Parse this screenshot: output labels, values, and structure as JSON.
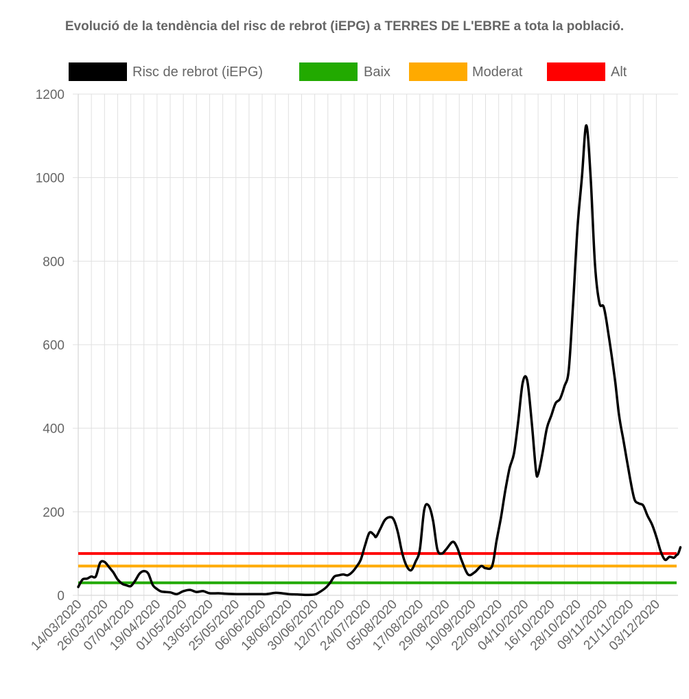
{
  "chart_data": {
    "type": "line",
    "title": "Evolució de la tendència del risc de rebrot (iEPG) a TERRES DE L'EBRE a tota la població.",
    "start_date": "2020-03-14",
    "x_tick_labels": [
      "14/03/2020",
      "26/03/2020",
      "07/04/2020",
      "19/04/2020",
      "01/05/2020",
      "13/05/2020",
      "25/05/2020",
      "06/06/2020",
      "18/06/2020",
      "30/06/2020",
      "12/07/2020",
      "24/07/2020",
      "05/08/2020",
      "17/08/2020",
      "29/08/2020",
      "10/09/2020",
      "22/09/2020",
      "04/10/2020",
      "16/10/2020",
      "28/10/2020",
      "09/11/2020",
      "21/11/2020",
      "03/12/2020"
    ],
    "y_tick_labels": [
      "0",
      "200",
      "400",
      "600",
      "800",
      "1000",
      "1200"
    ],
    "ylim": [
      0,
      1200
    ],
    "grid": true,
    "legend_position": "top",
    "series": [
      {
        "name": "Risc de rebrot (iEPG)",
        "color": "#000000",
        "points": [
          [
            "2020-03-14",
            20
          ],
          [
            "2020-03-16",
            38
          ],
          [
            "2020-03-18",
            40
          ],
          [
            "2020-03-20",
            45
          ],
          [
            "2020-03-22",
            45
          ],
          [
            "2020-03-24",
            78
          ],
          [
            "2020-03-26",
            80
          ],
          [
            "2020-03-28",
            68
          ],
          [
            "2020-03-30",
            55
          ],
          [
            "2020-04-01",
            38
          ],
          [
            "2020-04-03",
            28
          ],
          [
            "2020-04-05",
            24
          ],
          [
            "2020-04-07",
            22
          ],
          [
            "2020-04-09",
            35
          ],
          [
            "2020-04-11",
            52
          ],
          [
            "2020-04-13",
            58
          ],
          [
            "2020-04-15",
            52
          ],
          [
            "2020-04-17",
            25
          ],
          [
            "2020-04-19",
            15
          ],
          [
            "2020-04-21",
            9
          ],
          [
            "2020-04-25",
            7
          ],
          [
            "2020-04-28",
            3
          ],
          [
            "2020-05-01",
            10
          ],
          [
            "2020-05-04",
            13
          ],
          [
            "2020-05-07",
            8
          ],
          [
            "2020-05-10",
            10
          ],
          [
            "2020-05-13",
            5
          ],
          [
            "2020-05-17",
            5
          ],
          [
            "2020-05-20",
            4
          ],
          [
            "2020-05-25",
            3
          ],
          [
            "2020-05-30",
            3
          ],
          [
            "2020-06-04",
            3
          ],
          [
            "2020-06-08",
            3
          ],
          [
            "2020-06-12",
            6
          ],
          [
            "2020-06-15",
            5
          ],
          [
            "2020-06-18",
            3
          ],
          [
            "2020-06-22",
            2
          ],
          [
            "2020-06-26",
            1
          ],
          [
            "2020-06-30",
            2
          ],
          [
            "2020-07-02",
            7
          ],
          [
            "2020-07-05",
            18
          ],
          [
            "2020-07-07",
            30
          ],
          [
            "2020-07-09",
            45
          ],
          [
            "2020-07-11",
            48
          ],
          [
            "2020-07-13",
            50
          ],
          [
            "2020-07-15",
            48
          ],
          [
            "2020-07-17",
            55
          ],
          [
            "2020-07-19",
            68
          ],
          [
            "2020-07-21",
            85
          ],
          [
            "2020-07-23",
            120
          ],
          [
            "2020-07-25",
            150
          ],
          [
            "2020-07-27",
            145
          ],
          [
            "2020-07-28",
            140
          ],
          [
            "2020-07-30",
            160
          ],
          [
            "2020-08-01",
            180
          ],
          [
            "2020-08-03",
            187
          ],
          [
            "2020-08-05",
            182
          ],
          [
            "2020-08-07",
            150
          ],
          [
            "2020-08-09",
            100
          ],
          [
            "2020-08-11",
            70
          ],
          [
            "2020-08-13",
            60
          ],
          [
            "2020-08-15",
            80
          ],
          [
            "2020-08-17",
            110
          ],
          [
            "2020-08-19",
            205
          ],
          [
            "2020-08-21",
            215
          ],
          [
            "2020-08-23",
            180
          ],
          [
            "2020-08-25",
            110
          ],
          [
            "2020-08-27",
            100
          ],
          [
            "2020-08-29",
            110
          ],
          [
            "2020-09-01",
            128
          ],
          [
            "2020-09-03",
            115
          ],
          [
            "2020-09-05",
            85
          ],
          [
            "2020-09-08",
            50
          ],
          [
            "2020-09-11",
            55
          ],
          [
            "2020-09-14",
            70
          ],
          [
            "2020-09-16",
            65
          ],
          [
            "2020-09-19",
            70
          ],
          [
            "2020-09-21",
            130
          ],
          [
            "2020-09-23",
            185
          ],
          [
            "2020-09-25",
            250
          ],
          [
            "2020-09-27",
            305
          ],
          [
            "2020-09-29",
            340
          ],
          [
            "2020-10-01",
            420
          ],
          [
            "2020-10-03",
            510
          ],
          [
            "2020-10-05",
            515
          ],
          [
            "2020-10-07",
            420
          ],
          [
            "2020-10-09",
            300
          ],
          [
            "2020-10-10",
            290
          ],
          [
            "2020-10-12",
            340
          ],
          [
            "2020-10-14",
            400
          ],
          [
            "2020-10-16",
            430
          ],
          [
            "2020-10-18",
            460
          ],
          [
            "2020-10-20",
            470
          ],
          [
            "2020-10-22",
            500
          ],
          [
            "2020-10-24",
            540
          ],
          [
            "2020-10-26",
            700
          ],
          [
            "2020-10-28",
            880
          ],
          [
            "2020-10-30",
            1000
          ],
          [
            "2020-11-01",
            1125
          ],
          [
            "2020-11-03",
            1000
          ],
          [
            "2020-11-05",
            790
          ],
          [
            "2020-11-07",
            700
          ],
          [
            "2020-11-09",
            690
          ],
          [
            "2020-11-11",
            630
          ],
          [
            "2020-11-14",
            520
          ],
          [
            "2020-11-16",
            430
          ],
          [
            "2020-11-18",
            370
          ],
          [
            "2020-11-21",
            280
          ],
          [
            "2020-11-23",
            230
          ],
          [
            "2020-11-25",
            220
          ],
          [
            "2020-11-27",
            215
          ],
          [
            "2020-11-29",
            190
          ],
          [
            "2020-12-01",
            170
          ],
          [
            "2020-12-03",
            140
          ],
          [
            "2020-12-05",
            105
          ],
          [
            "2020-12-07",
            85
          ],
          [
            "2020-12-09",
            92
          ],
          [
            "2020-12-11",
            90
          ],
          [
            "2020-12-12",
            95
          ],
          [
            "2020-12-13",
            100
          ],
          [
            "2020-12-14",
            115
          ]
        ]
      },
      {
        "name": "Baix",
        "color": "#22aa00",
        "value": 30
      },
      {
        "name": "Moderat",
        "color": "#ffaa00",
        "value": 70
      },
      {
        "name": "Alt",
        "color": "#ff0000",
        "value": 100
      }
    ]
  }
}
